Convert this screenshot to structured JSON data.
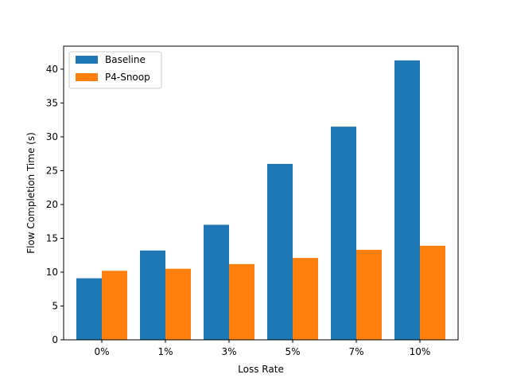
{
  "chart_data": {
    "type": "bar",
    "title": "",
    "xlabel": "Loss Rate",
    "ylabel": "Flow Completion Time (s)",
    "categories": [
      "0%",
      "1%",
      "3%",
      "5%",
      "7%",
      "10%"
    ],
    "series": [
      {
        "name": "Baseline",
        "color": "#1f77b4",
        "values": [
          9.1,
          13.2,
          17.0,
          26.0,
          31.5,
          41.3
        ]
      },
      {
        "name": "P4-Snoop",
        "color": "#ff7f0e",
        "values": [
          10.2,
          10.5,
          11.2,
          12.1,
          13.3,
          13.9
        ]
      }
    ],
    "ylim": [
      0,
      43.4
    ],
    "yticks": [
      0,
      5,
      10,
      15,
      20,
      25,
      30,
      35,
      40
    ],
    "grid": false,
    "legend": "top-left"
  }
}
